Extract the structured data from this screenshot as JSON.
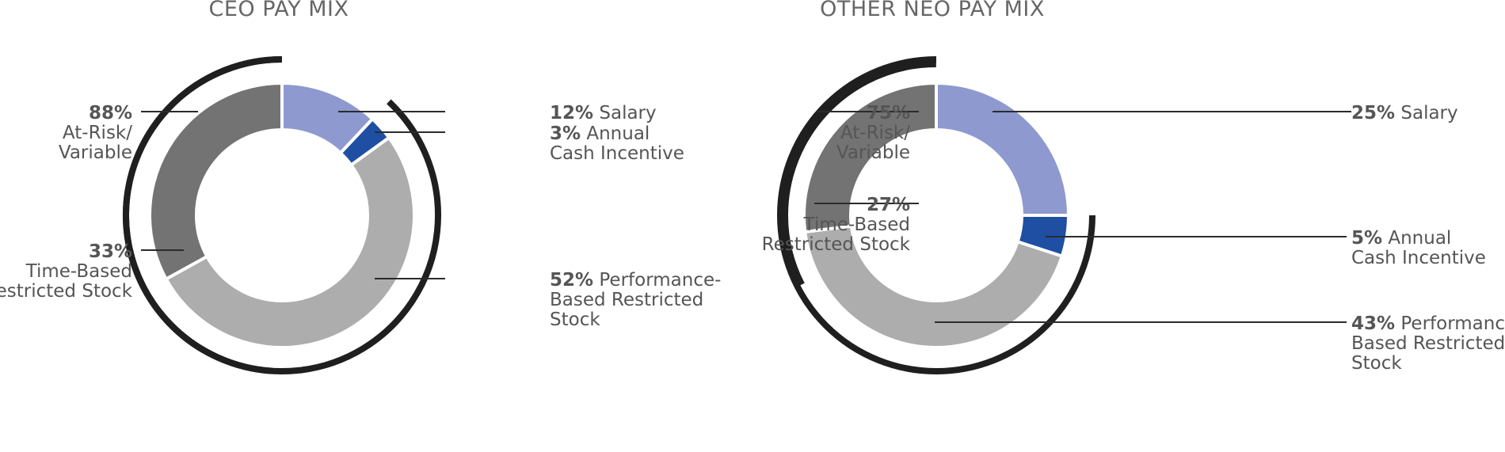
{
  "chart_data": [
    {
      "type": "pie",
      "title": "CEO PAY MIX",
      "slices": [
        {
          "label": "Salary",
          "value": 12,
          "value_label": "12%",
          "label_lines": [
            "Salary"
          ],
          "color": "#8e99cf"
        },
        {
          "label": "Annual Cash Incentive",
          "value": 3,
          "value_label": "3%",
          "label_lines": [
            "Annual",
            "Cash Incentive"
          ],
          "color": "#1f4fa2"
        },
        {
          "label": "Performance-Based Restricted Stock",
          "value": 52,
          "value_label": "52%",
          "label_lines": [
            "Performance-",
            "Based Restricted",
            "Stock"
          ],
          "color": "#adadad"
        },
        {
          "label": "Time-Based Restricted Stock",
          "value": 33,
          "value_label": "33%",
          "label_lines": [
            "Time-Based",
            "Restricted Stock"
          ],
          "color": "#737373"
        }
      ],
      "group_annotation": {
        "value_label": "88%",
        "label_lines": [
          "At-Risk/",
          "Variable"
        ],
        "value": 88
      }
    },
    {
      "type": "pie",
      "title": "OTHER NEO PAY MIX",
      "slices": [
        {
          "label": "Salary",
          "value": 25,
          "value_label": "25%",
          "label_lines": [
            "Salary"
          ],
          "color": "#8e99cf"
        },
        {
          "label": "Annual Cash Incentive",
          "value": 5,
          "value_label": "5%",
          "label_lines": [
            "Annual",
            "Cash Incentive"
          ],
          "color": "#1f4fa2"
        },
        {
          "label": "Performance-Based Restricted Stock",
          "value": 43,
          "value_label": "43%",
          "label_lines": [
            "Performance-",
            "Based Restricted",
            "Stock"
          ],
          "color": "#adadad"
        },
        {
          "label": "Time-Based Restricted Stock",
          "value": 27,
          "value_label": "27%",
          "label_lines": [
            "Time-Based",
            "Restricted Stock"
          ],
          "color": "#737373"
        }
      ],
      "group_annotation": {
        "value_label": "75%",
        "label_lines": [
          "At-Risk/",
          "Variable"
        ],
        "value": 75
      }
    }
  ]
}
